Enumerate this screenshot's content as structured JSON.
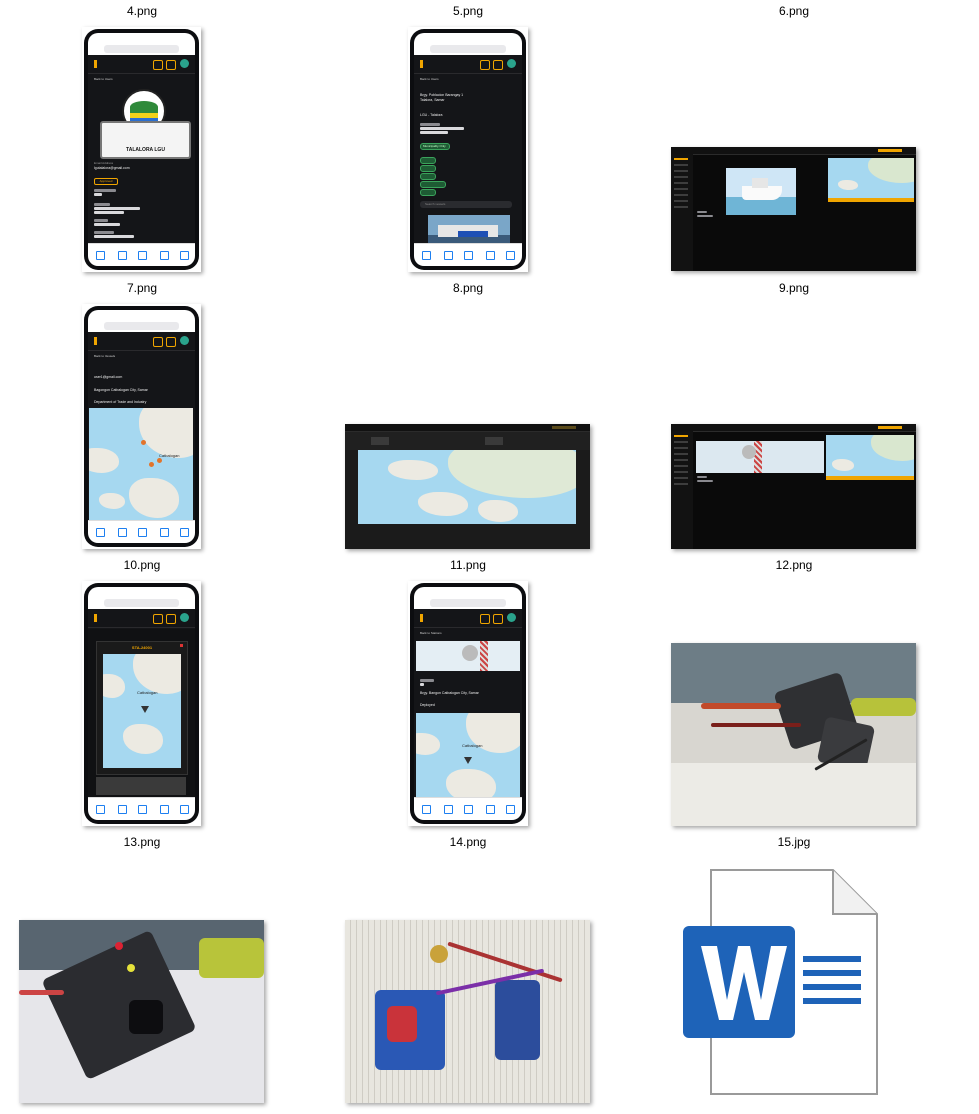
{
  "explorer": {
    "top_labels": [
      "4.png",
      "5.png",
      "6.png"
    ],
    "files": [
      {
        "name": "7.png",
        "kind": "phone-screenshot",
        "screen": "user-details"
      },
      {
        "name": "8.png",
        "kind": "phone-screenshot",
        "screen": "vessel-details"
      },
      {
        "name": "9.png",
        "kind": "desktop-screenshot",
        "screen": "boat-map"
      },
      {
        "name": "10.png",
        "kind": "phone-screenshot",
        "screen": "vessel-map"
      },
      {
        "name": "11.png",
        "kind": "desktop-screenshot",
        "screen": "full-map"
      },
      {
        "name": "12.png",
        "kind": "desktop-screenshot",
        "screen": "station-map"
      },
      {
        "name": "13.png",
        "kind": "phone-screenshot",
        "screen": "station-popup"
      },
      {
        "name": "14.png",
        "kind": "phone-screenshot",
        "screen": "station-details"
      },
      {
        "name": "15.jpg",
        "kind": "photo",
        "screen": "circuit-board"
      },
      {
        "name": "",
        "kind": "photo",
        "screen": "circuit-board-closeup"
      },
      {
        "name": "",
        "kind": "photo",
        "screen": "breadboard-gsm"
      },
      {
        "name": "",
        "kind": "word-document",
        "screen": "docx"
      }
    ]
  },
  "phone7": {
    "back": "Back to Users",
    "title": "TALALORA LGU",
    "email_label": "Email Address",
    "email": "lgutalalora@gmail.com",
    "status": "Approved"
  },
  "phone8": {
    "back": "Back to Users",
    "address": "Brgy. Poblacion Barangay 1",
    "town": "Talalora, Samar",
    "agency": "LGU - Talalora",
    "perm": "Municipality Only",
    "tags": [
      "Fishing",
      "Private",
      "Official",
      "Transportation",
      "Cargo"
    ],
    "search": "Search vessels"
  },
  "phone10": {
    "back": "Back to Vessels",
    "email": "user1@gmail.com",
    "address": "Bagongon Catbalogan City, Samar",
    "agency": "Department of Trade and Industry",
    "place": "Catbalogan"
  },
  "phone13": {
    "station": "STA-24001",
    "place": "Catbalogan"
  },
  "phone14": {
    "back": "Back to Stations",
    "address": "Brgy. Bangon Catbalogan City, Samar",
    "status": "Deployed",
    "place": "Catbalogan"
  },
  "colors": {
    "accent": "#f0a500",
    "app_bg": "#141518",
    "sea": "#a6d8f0",
    "land": "#eceae2",
    "status_green": "#3ba35c",
    "word_blue": "#1e63b8"
  }
}
